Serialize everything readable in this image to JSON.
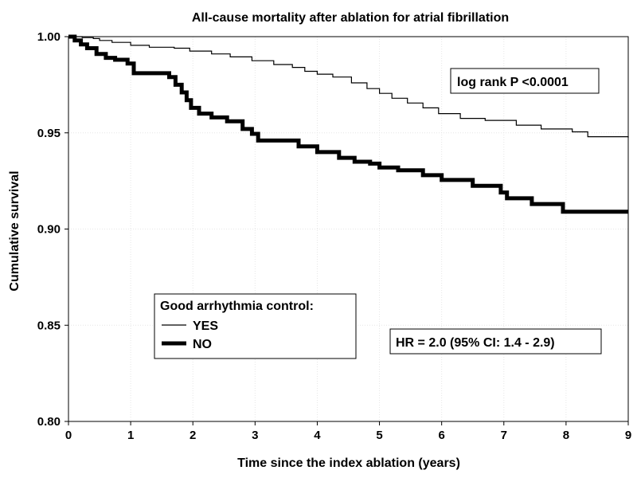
{
  "chart_data": {
    "type": "line",
    "title": "All-cause mortality after ablation for atrial fibrillation",
    "xlabel": "Time since the index ablation (years)",
    "ylabel": "Cumulative survival",
    "xlim": [
      0,
      9
    ],
    "ylim": [
      0.8,
      1.0
    ],
    "x_ticks": [
      "0",
      "1",
      "2",
      "3",
      "4",
      "5",
      "6",
      "7",
      "8",
      "9"
    ],
    "y_ticks": [
      "0.80",
      "0.85",
      "0.90",
      "0.95",
      "1.00"
    ],
    "grid": true,
    "step": true,
    "legend": {
      "title": "Good arrhythmia control:",
      "placement": "lower-left",
      "entries": [
        "YES",
        "NO"
      ]
    },
    "annotations": {
      "pvalue": "log rank P <0.0001",
      "hr": "HR = 2.0 (95% CI: 1.4 - 2.9)"
    },
    "series": [
      {
        "name": "YES",
        "color": "#000000",
        "line": "thin",
        "x": [
          0,
          0.22,
          0.4,
          0.5,
          0.7,
          1.0,
          1.3,
          1.7,
          1.95,
          2.3,
          2.6,
          2.95,
          3.3,
          3.6,
          3.8,
          4.0,
          4.25,
          4.55,
          4.8,
          5.0,
          5.2,
          5.45,
          5.7,
          5.95,
          6.3,
          6.7,
          7.2,
          7.6,
          8.1,
          8.35,
          9.0
        ],
        "y": [
          1.0,
          0.9995,
          0.999,
          0.998,
          0.997,
          0.9955,
          0.9945,
          0.994,
          0.9925,
          0.991,
          0.9895,
          0.9875,
          0.9855,
          0.984,
          0.982,
          0.9805,
          0.979,
          0.976,
          0.973,
          0.9705,
          0.968,
          0.9655,
          0.963,
          0.96,
          0.9575,
          0.9565,
          0.954,
          0.952,
          0.9505,
          0.948,
          0.9475
        ]
      },
      {
        "name": "NO",
        "color": "#000000",
        "line": "thick",
        "x": [
          0,
          0.1,
          0.2,
          0.3,
          0.45,
          0.6,
          0.75,
          0.95,
          1.05,
          1.5,
          1.62,
          1.72,
          1.82,
          1.9,
          1.97,
          2.1,
          2.3,
          2.55,
          2.8,
          2.95,
          3.05,
          3.35,
          3.7,
          4.0,
          4.35,
          4.6,
          4.85,
          5.0,
          5.3,
          5.7,
          6.0,
          6.5,
          6.95,
          7.05,
          7.45,
          7.85,
          7.95,
          9.0
        ],
        "y": [
          1.0,
          0.998,
          0.996,
          0.994,
          0.991,
          0.989,
          0.988,
          0.986,
          0.981,
          0.981,
          0.979,
          0.975,
          0.971,
          0.967,
          0.963,
          0.96,
          0.958,
          0.956,
          0.952,
          0.9495,
          0.946,
          0.946,
          0.943,
          0.94,
          0.937,
          0.935,
          0.934,
          0.932,
          0.9305,
          0.928,
          0.9255,
          0.9225,
          0.919,
          0.916,
          0.913,
          0.913,
          0.909,
          0.909
        ]
      }
    ]
  }
}
